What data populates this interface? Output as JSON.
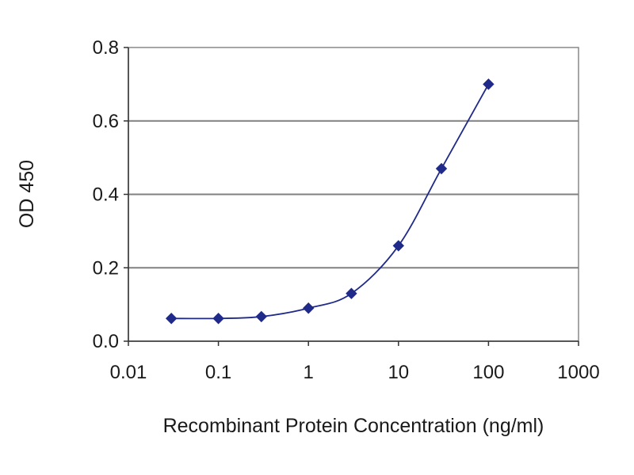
{
  "chart_data": {
    "type": "line",
    "title": "",
    "xlabel": "Recombinant Protein Concentration (ng/ml)",
    "ylabel": "OD 450",
    "x_scale": "log",
    "xlim": [
      0.01,
      1000
    ],
    "ylim": [
      0,
      0.8
    ],
    "x_ticks": [
      "0.01",
      "0.1",
      "1",
      "10",
      "100",
      "1000"
    ],
    "y_ticks": [
      "0.0",
      "0.2",
      "0.4",
      "0.6",
      "0.8"
    ],
    "grid": "horizontal",
    "legend": "none",
    "series": [
      {
        "x": [
          0.03,
          0.1,
          0.3,
          1,
          3,
          10,
          30,
          100
        ],
        "y": [
          0.062,
          0.062,
          0.067,
          0.09,
          0.13,
          0.26,
          0.47,
          0.7
        ],
        "color": "#1f2a8a",
        "marker": "diamond"
      }
    ]
  }
}
